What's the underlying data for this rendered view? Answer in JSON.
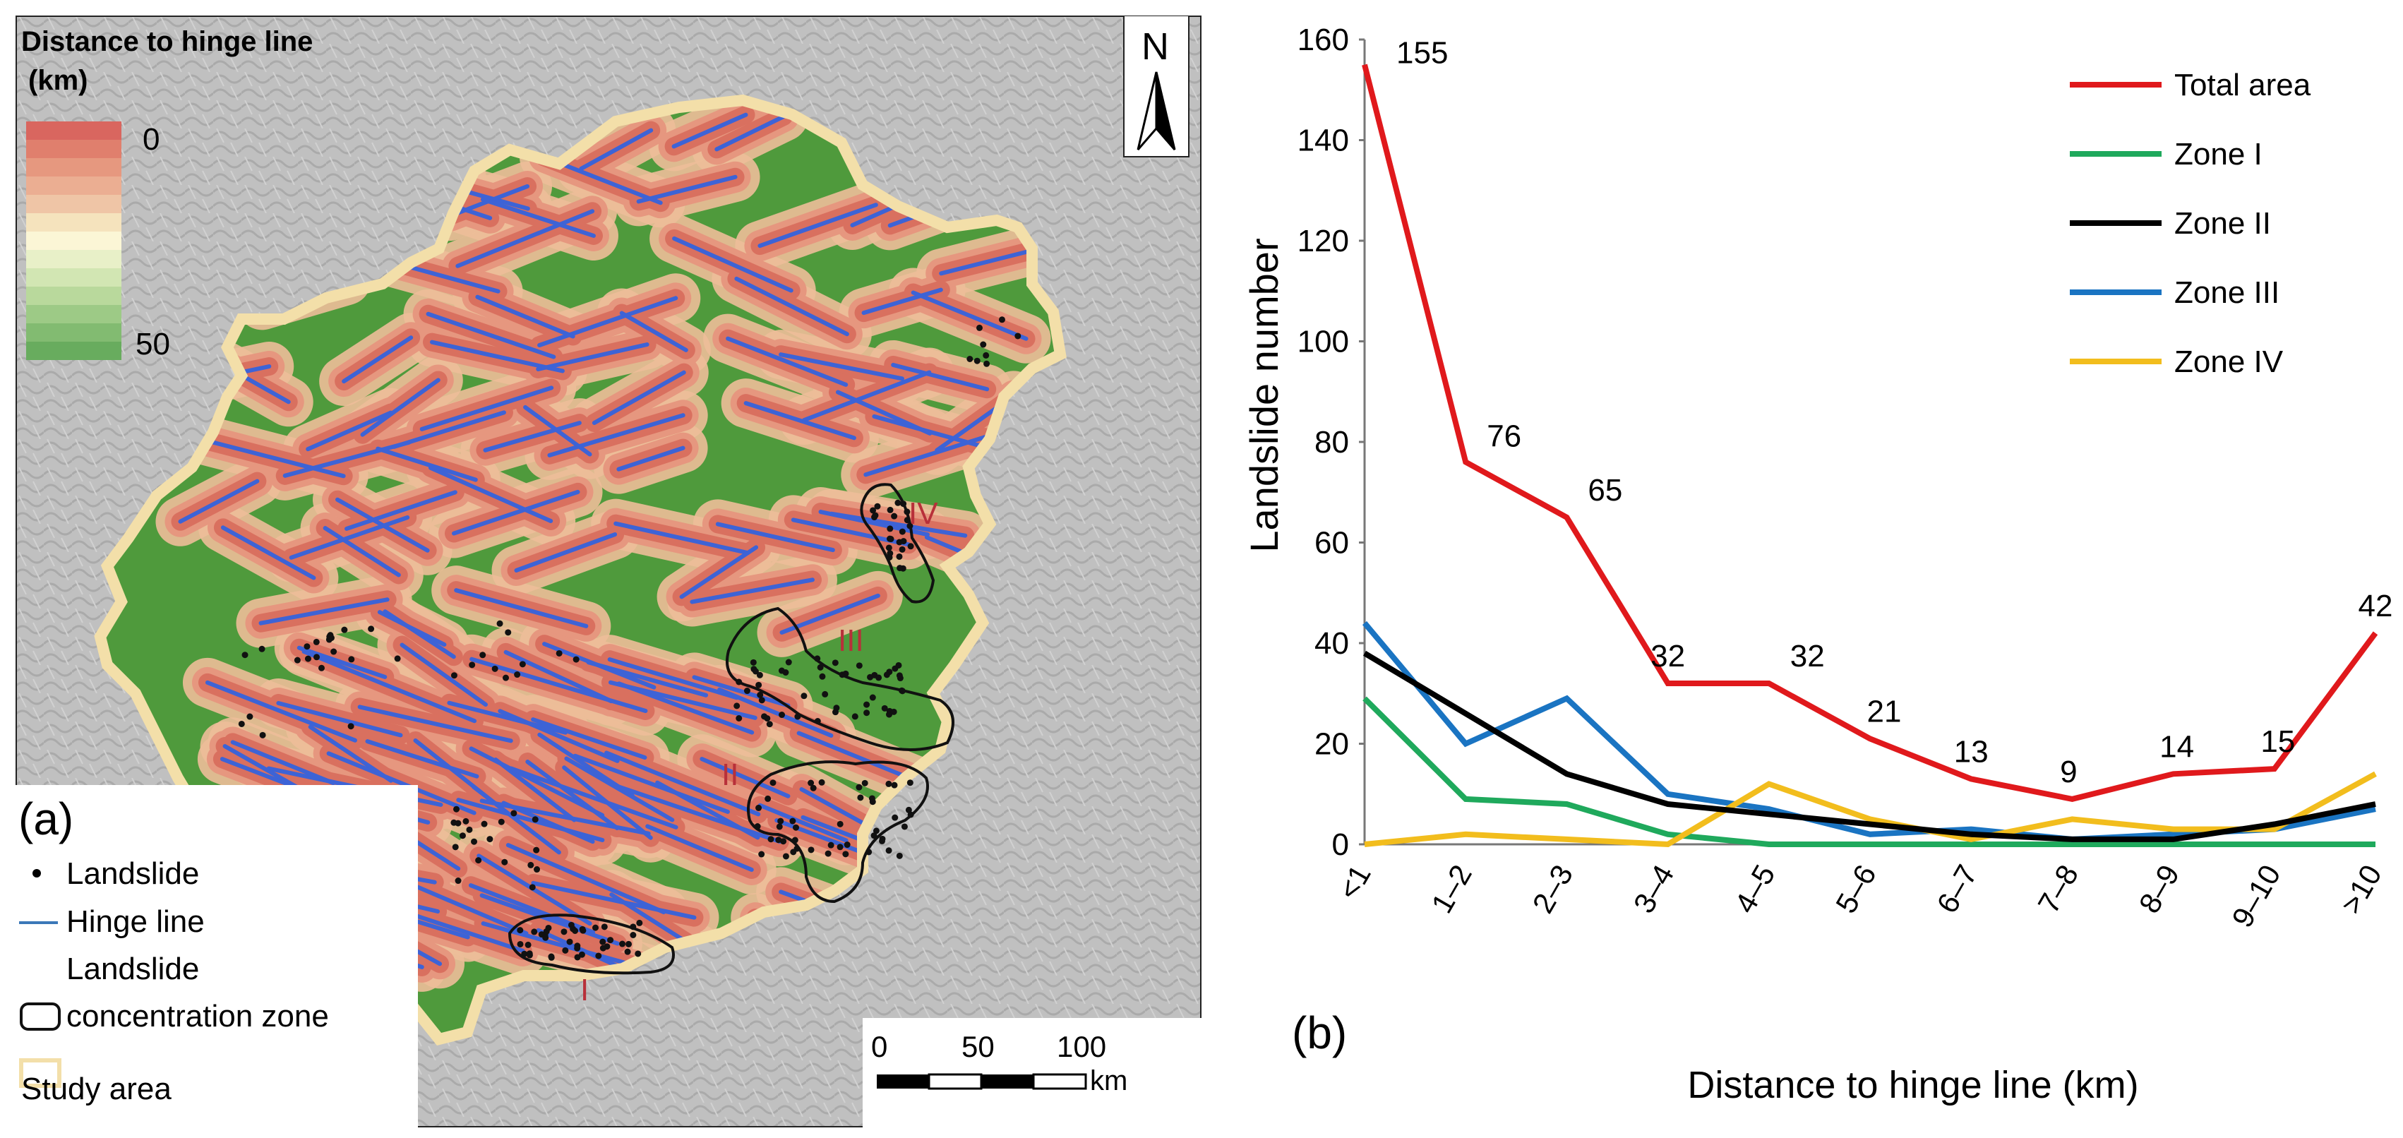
{
  "map": {
    "legend_title_line1": "Distance to hinge line",
    "legend_title_line2": "(km)",
    "scale_max_label": "0",
    "scale_min_label": "50",
    "north_label": "N",
    "panel_label": "(a)",
    "legend_items": {
      "landslide": "Landslide",
      "hinge_line": "Hinge line",
      "zone_line1": "Landslide",
      "zone_line2": "concentration zone",
      "study_area": "Study area"
    },
    "zones": [
      "I",
      "II",
      "III",
      "IV"
    ],
    "scalebar": {
      "ticks": [
        "0",
        "50",
        "100"
      ],
      "unit": "km"
    },
    "colors": {
      "green": "#4f9a3c",
      "hinge": "#3d63d6",
      "near": "#d9705f",
      "mid": "#eebe99",
      "boundary": "#f3dfa9",
      "zone_label": "#b8303a"
    }
  },
  "chart_data": {
    "type": "line",
    "panel_label": "(b)",
    "xlabel": "Distance to hinge line (km)",
    "ylabel": "Landslide number",
    "categories": [
      "<1",
      "1–2",
      "2–3",
      "3–4",
      "4–5",
      "5–6",
      "6–7",
      "7–8",
      "8–9",
      "9–10",
      ">10"
    ],
    "ylim": [
      0,
      160
    ],
    "yticks": [
      0,
      20,
      40,
      60,
      80,
      100,
      120,
      140,
      160
    ],
    "series": [
      {
        "name": "Total area",
        "color": "#e0191c",
        "values": [
          155,
          76,
          65,
          32,
          32,
          21,
          13,
          9,
          14,
          15,
          42
        ],
        "labels": [
          "155",
          "76",
          "65",
          "32",
          "32",
          "21",
          "13",
          "9",
          "14",
          "15",
          "42"
        ]
      },
      {
        "name": "Zone I",
        "color": "#1fa95c",
        "values": [
          29,
          9,
          8,
          2,
          0,
          0,
          0,
          0,
          0,
          0,
          0
        ]
      },
      {
        "name": "Zone II",
        "color": "#000000",
        "values": [
          38,
          26,
          14,
          8,
          6,
          4,
          2,
          1,
          1,
          4,
          8
        ]
      },
      {
        "name": "Zone III",
        "color": "#1a74c2",
        "values": [
          44,
          20,
          29,
          10,
          7,
          2,
          3,
          1,
          2,
          3,
          7
        ]
      },
      {
        "name": "Zone IV",
        "color": "#f2bd1d",
        "values": [
          0,
          2,
          1,
          0,
          12,
          5,
          1,
          5,
          3,
          3,
          14
        ]
      }
    ]
  }
}
